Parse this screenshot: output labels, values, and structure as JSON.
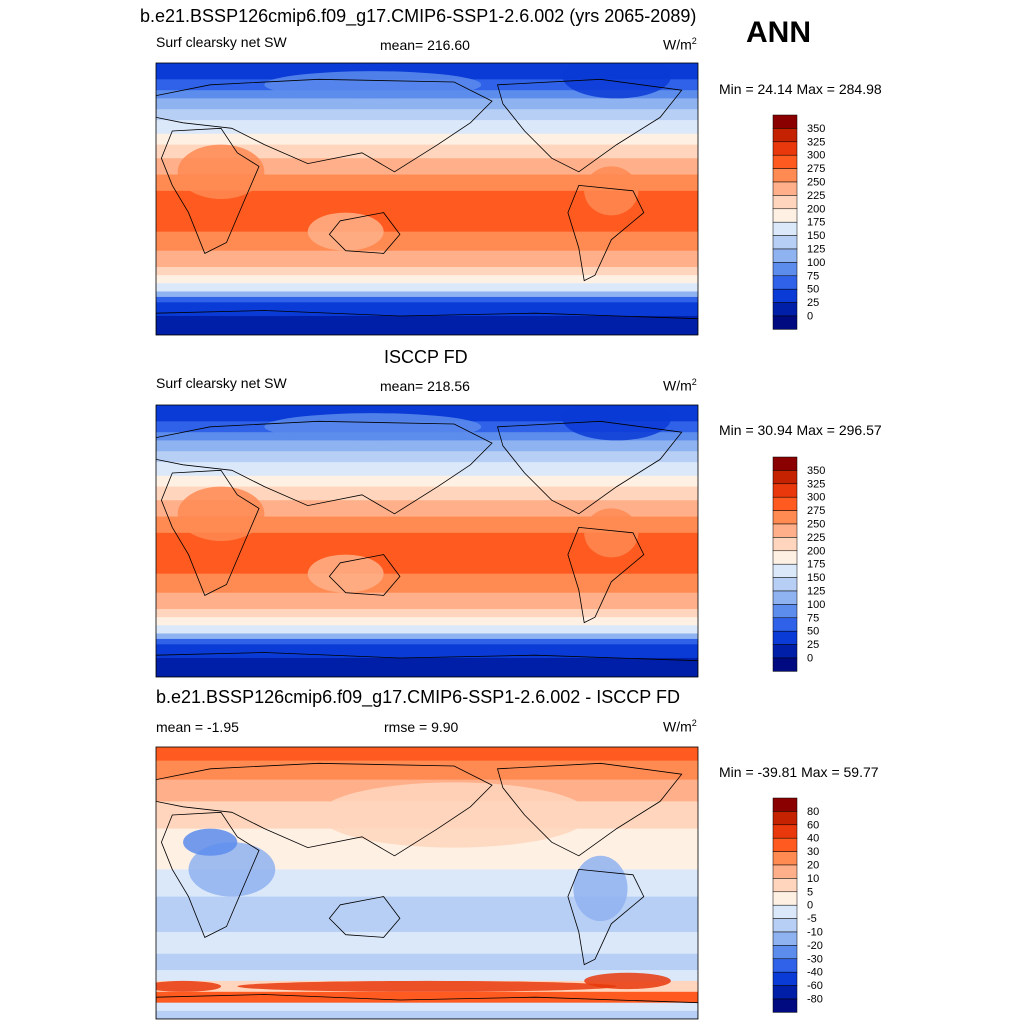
{
  "header": {
    "title": "b.e21.BSSP126cmip6.f09_g17.CMIP6-SSP1-2.6.002 (yrs 2065-2089)",
    "season": "ANN"
  },
  "chart_data": [
    {
      "type": "heatmap",
      "title": "b.e21.BSSP126cmip6.f09_g17.CMIP6-SSP1-2.6.002 (yrs 2065-2089)",
      "left_label": "Surf clearsky net SW",
      "center_label": "mean= 216.60",
      "units_base": "W/m",
      "units_exp": "2",
      "minmax": "Min =  24.14 Max = 284.98",
      "levels": [
        "350",
        "325",
        "300",
        "275",
        "250",
        "225",
        "200",
        "175",
        "150",
        "125",
        "100",
        "75",
        "50",
        "25",
        "0"
      ],
      "colors": [
        "#8a0000",
        "#c42200",
        "#e8380c",
        "#ff5a1f",
        "#ff8a52",
        "#ffb08a",
        "#ffd6bd",
        "#fff0e4",
        "#dae8fa",
        "#b8cff5",
        "#8fb2f0",
        "#5c8cec",
        "#2f62e8",
        "#0a3bd6",
        "#001fa8",
        "#000a80"
      ]
    },
    {
      "type": "heatmap",
      "title": "ISCCP FD",
      "left_label": "Surf clearsky net SW",
      "center_label": "mean= 218.56",
      "units_base": "W/m",
      "units_exp": "2",
      "minmax": "Min =  30.94 Max = 296.57",
      "levels": [
        "350",
        "325",
        "300",
        "275",
        "250",
        "225",
        "200",
        "175",
        "150",
        "125",
        "100",
        "75",
        "50",
        "25",
        "0"
      ],
      "colors": [
        "#8a0000",
        "#c42200",
        "#e8380c",
        "#ff5a1f",
        "#ff8a52",
        "#ffb08a",
        "#ffd6bd",
        "#fff0e4",
        "#dae8fa",
        "#b8cff5",
        "#8fb2f0",
        "#5c8cec",
        "#2f62e8",
        "#0a3bd6",
        "#001fa8",
        "#000a80"
      ]
    },
    {
      "type": "heatmap",
      "title": "b.e21.BSSP126cmip6.f09_g17.CMIP6-SSP1-2.6.002 - ISCCP FD",
      "left_label": "mean =  -1.95",
      "center_label": "rmse =   9.90",
      "units_base": "W/m",
      "units_exp": "2",
      "minmax": "Min = -39.81 Max =  59.77",
      "levels": [
        "80",
        "60",
        "40",
        "30",
        "20",
        "10",
        "5",
        "0",
        "-5",
        "-10",
        "-20",
        "-30",
        "-40",
        "-60",
        "-80"
      ],
      "colors": [
        "#8a0000",
        "#c42200",
        "#e8380c",
        "#ff5a1f",
        "#ff8a52",
        "#ffb08a",
        "#ffd6bd",
        "#fff0e4",
        "#dae8fa",
        "#b8cff5",
        "#8fb2f0",
        "#5c8cec",
        "#2f62e8",
        "#0a3bd6",
        "#001fa8",
        "#000a80"
      ]
    }
  ]
}
